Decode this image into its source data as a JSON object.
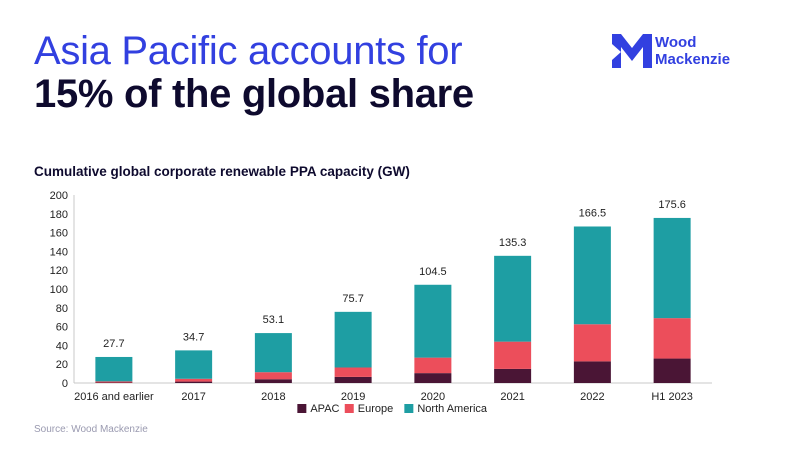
{
  "headline": {
    "line1": "Asia Pacific accounts for",
    "line2": "15% of the global share"
  },
  "logo": {
    "line1": "Wood",
    "line2": "Mackenzie",
    "icon": "wood-mackenzie-logo-mark"
  },
  "source": "Source: Wood Mackenzie",
  "colors": {
    "APAC": "#4a1535",
    "Europe": "#ec4e5b",
    "North America": "#1e9ea3",
    "headline_accent": "#3240e0",
    "headline_dark": "#0e0a2e"
  },
  "chart_data": {
    "type": "bar",
    "stacked": true,
    "title": "Cumulative global corporate renewable PPA capacity  (GW)",
    "xlabel": "",
    "ylabel": "",
    "ylim": [
      0,
      200
    ],
    "yticks": [
      0,
      20,
      40,
      60,
      80,
      100,
      120,
      140,
      160,
      180,
      200
    ],
    "grid": false,
    "legend_position": "bottom-center",
    "categories": [
      "2016 and earlier",
      "2017",
      "2018",
      "2019",
      "2020",
      "2021",
      "2022",
      "H1 2023"
    ],
    "series": [
      {
        "name": "APAC",
        "values": [
          0.5,
          1.5,
          4,
          6.5,
          10.5,
          15,
          23,
          26
        ]
      },
      {
        "name": "Europe",
        "values": [
          1.2,
          3,
          7.5,
          10,
          16.5,
          29,
          39.5,
          43
        ]
      },
      {
        "name": "North America",
        "values": [
          26,
          30.2,
          41.6,
          59.2,
          77.5,
          91.3,
          104,
          106.6
        ]
      }
    ],
    "totals": [
      "27.7",
      "34.7",
      "53.1",
      "75.7",
      "104.5",
      "135.3",
      "166.5",
      "175.6"
    ]
  }
}
